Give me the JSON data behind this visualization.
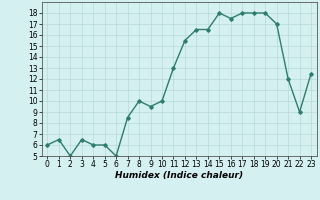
{
  "x": [
    0,
    1,
    2,
    3,
    4,
    5,
    6,
    7,
    8,
    9,
    10,
    11,
    12,
    13,
    14,
    15,
    16,
    17,
    18,
    19,
    20,
    21,
    22,
    23
  ],
  "y": [
    6,
    6.5,
    5,
    6.5,
    6,
    6,
    5,
    8.5,
    10,
    9.5,
    10,
    13,
    15.5,
    16.5,
    16.5,
    18,
    17.5,
    18,
    18,
    18,
    17,
    12,
    9,
    12.5
  ],
  "line_color": "#2e7d6e",
  "marker": "D",
  "marker_size": 1.8,
  "line_width": 1.0,
  "bg_color": "#d4f0f0",
  "grid_color": "#b8d8d8",
  "xlabel": "Humidex (Indice chaleur)",
  "xlabel_fontsize": 6.5,
  "tick_fontsize": 5.5,
  "ylim": [
    5,
    19
  ],
  "xlim": [
    -0.5,
    23.5
  ],
  "yticks": [
    5,
    6,
    7,
    8,
    9,
    10,
    11,
    12,
    13,
    14,
    15,
    16,
    17,
    18
  ],
  "xticks": [
    0,
    1,
    2,
    3,
    4,
    5,
    6,
    7,
    8,
    9,
    10,
    11,
    12,
    13,
    14,
    15,
    16,
    17,
    18,
    19,
    20,
    21,
    22,
    23
  ]
}
